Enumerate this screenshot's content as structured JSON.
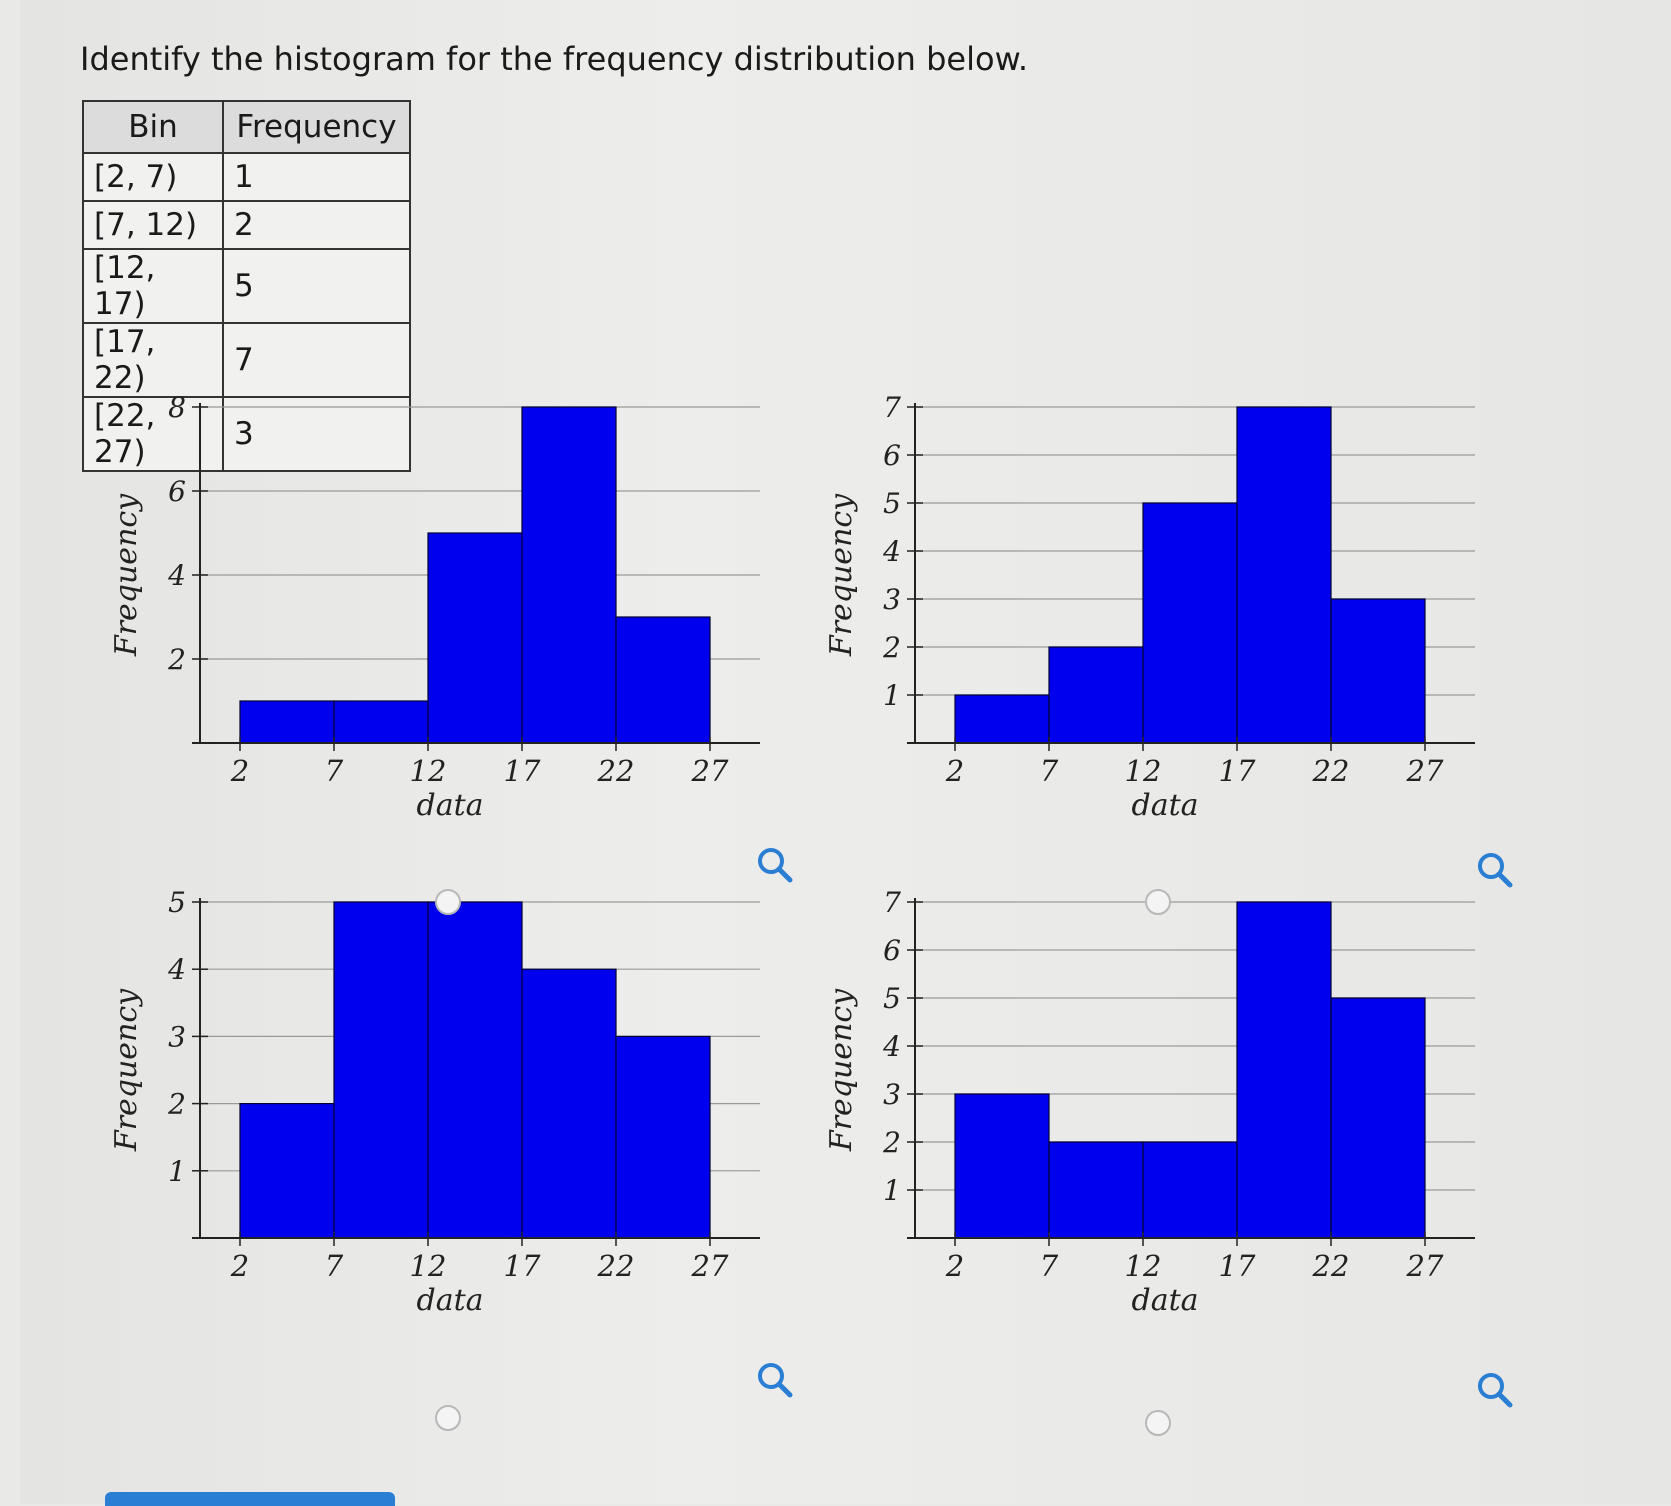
{
  "question": "Identify the histogram for the frequency distribution below.",
  "table": {
    "headers": [
      "Bin",
      "Frequency"
    ],
    "rows": [
      [
        "[2, 7)",
        "1"
      ],
      [
        "[7, 12)",
        "2"
      ],
      [
        "[12, 17)",
        "5"
      ],
      [
        "[17, 22)",
        "7"
      ],
      [
        "[22, 27)",
        "3"
      ]
    ]
  },
  "chart_data": [
    {
      "type": "bar",
      "option": "A",
      "bins": [
        [
          2,
          7
        ],
        [
          7,
          12
        ],
        [
          12,
          17
        ],
        [
          17,
          22
        ],
        [
          22,
          27
        ]
      ],
      "values": [
        1,
        1,
        5,
        8,
        3
      ],
      "xticks": [
        "2",
        "7",
        "12",
        "17",
        "22",
        "27"
      ],
      "yticks": [
        "2",
        "4",
        "6",
        "8"
      ],
      "ylim": [
        0,
        8
      ],
      "xlabel": "data",
      "ylabel": "Frequency",
      "bar_color": "#0000ee"
    },
    {
      "type": "bar",
      "option": "B",
      "bins": [
        [
          2,
          7
        ],
        [
          7,
          12
        ],
        [
          12,
          17
        ],
        [
          17,
          22
        ],
        [
          22,
          27
        ]
      ],
      "values": [
        1,
        2,
        5,
        7,
        3
      ],
      "xticks": [
        "2",
        "7",
        "12",
        "17",
        "22",
        "27"
      ],
      "yticks": [
        "1",
        "2",
        "3",
        "4",
        "5",
        "6",
        "7"
      ],
      "ylim": [
        0,
        7
      ],
      "xlabel": "data",
      "ylabel": "Frequency",
      "bar_color": "#0000ee"
    },
    {
      "type": "bar",
      "option": "C",
      "bins": [
        [
          2,
          7
        ],
        [
          7,
          12
        ],
        [
          12,
          17
        ],
        [
          17,
          22
        ],
        [
          22,
          27
        ]
      ],
      "values": [
        2,
        5,
        5,
        4,
        3
      ],
      "xticks": [
        "2",
        "7",
        "12",
        "17",
        "22",
        "27"
      ],
      "yticks": [
        "1",
        "2",
        "3",
        "4",
        "5"
      ],
      "ylim": [
        0,
        5
      ],
      "xlabel": "data",
      "ylabel": "Frequency",
      "bar_color": "#0000ee"
    },
    {
      "type": "bar",
      "option": "D",
      "bins": [
        [
          2,
          7
        ],
        [
          7,
          12
        ],
        [
          12,
          17
        ],
        [
          17,
          22
        ],
        [
          22,
          27
        ]
      ],
      "values": [
        3,
        2,
        2,
        7,
        5
      ],
      "xticks": [
        "2",
        "7",
        "12",
        "17",
        "22",
        "27"
      ],
      "yticks": [
        "1",
        "2",
        "3",
        "4",
        "5",
        "6",
        "7"
      ],
      "ylim": [
        0,
        7
      ],
      "xlabel": "data",
      "ylabel": "Frequency",
      "bar_color": "#0000ee"
    }
  ]
}
